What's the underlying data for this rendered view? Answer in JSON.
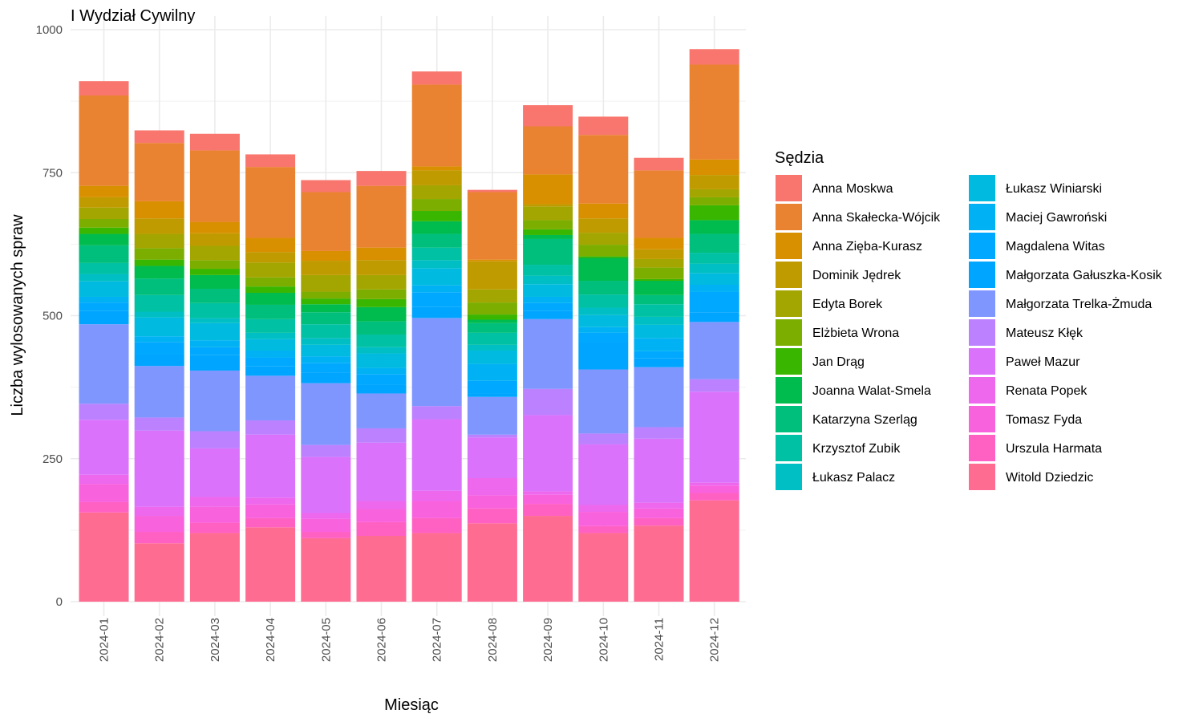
{
  "chart_data": {
    "type": "bar",
    "stacked": true,
    "title": "I Wydział Cywilny",
    "xlabel": "Miesiąc",
    "ylabel": "Liczba wylosowanych spraw",
    "ylim": [
      0,
      1000
    ],
    "yticks": [
      0,
      250,
      500,
      750,
      1000
    ],
    "grid": true,
    "legend_title": "Sędzia",
    "legend_position": "right",
    "categories": [
      "2024-01",
      "2024-02",
      "2024-03",
      "2024-04",
      "2024-05",
      "2024-06",
      "2024-07",
      "2024-08",
      "2024-09",
      "2024-10",
      "2024-11",
      "2024-12"
    ],
    "series": [
      {
        "name": "Anna Moskwa",
        "color": "#F8766D",
        "values": [
          25,
          22,
          29,
          22,
          21,
          26,
          23,
          4,
          37,
          32,
          22,
          27
        ]
      },
      {
        "name": "Anna Skałecka-Wójcik",
        "color": "#EA8331",
        "values": [
          158,
          102,
          125,
          124,
          103,
          108,
          143,
          118,
          84,
          120,
          118,
          166
        ]
      },
      {
        "name": "Anna Zięba-Kurasz",
        "color": "#D89000",
        "values": [
          20,
          30,
          20,
          25,
          17,
          22,
          7,
          3,
          52,
          26,
          20,
          27
        ]
      },
      {
        "name": "Dominik Jędrek",
        "color": "#C09B00",
        "values": [
          18,
          27,
          22,
          18,
          25,
          26,
          26,
          49,
          4,
          25,
          17,
          25
        ]
      },
      {
        "name": "Edyta Borek",
        "color": "#A3A500",
        "values": [
          20,
          25,
          25,
          26,
          29,
          25,
          24,
          23,
          24,
          21,
          15,
          14
        ]
      },
      {
        "name": "Elżbieta Wrona",
        "color": "#7CAE00",
        "values": [
          15,
          20,
          15,
          16,
          12,
          17,
          21,
          21,
          16,
          20,
          20,
          14
        ]
      },
      {
        "name": "Jan Drąg",
        "color": "#39B600",
        "values": [
          11,
          11,
          11,
          11,
          10,
          14,
          18,
          9,
          10,
          3,
          3,
          26
        ]
      },
      {
        "name": "Joanna Walat-Smela",
        "color": "#00BB4E",
        "values": [
          20,
          22,
          24,
          21,
          14,
          25,
          22,
          6,
          7,
          40,
          25,
          24
        ]
      },
      {
        "name": "Katarzyna Szerląg",
        "color": "#00BF7D",
        "values": [
          31,
          29,
          25,
          25,
          21,
          23,
          24,
          17,
          45,
          24,
          16,
          33
        ]
      },
      {
        "name": "Krzysztof Zubik",
        "color": "#00C1A3",
        "values": [
          19,
          29,
          26,
          24,
          24,
          22,
          22,
          21,
          19,
          23,
          22,
          19
        ]
      },
      {
        "name": "Łukasz Palacz",
        "color": "#00BFC4",
        "values": [
          13,
          10,
          9,
          11,
          12,
          11,
          14,
          10,
          15,
          13,
          14,
          17
        ]
      },
      {
        "name": "Łukasz Winiarski",
        "color": "#00BAE0",
        "values": [
          27,
          33,
          30,
          20,
          20,
          25,
          30,
          23,
          22,
          21,
          23,
          20
        ]
      },
      {
        "name": "Maciej Gawroński",
        "color": "#00B2F3",
        "values": [
          10,
          10,
          12,
          12,
          12,
          11,
          12,
          30,
          11,
          10,
          23,
          12
        ]
      },
      {
        "name": "Magdalena Witas",
        "color": "#00A9FF",
        "values": [
          15,
          22,
          14,
          15,
          16,
          18,
          26,
          22,
          14,
          17,
          12,
          36
        ]
      },
      {
        "name": "Małgorzata Gałuszka-Kosik",
        "color": "#00A5FF",
        "values": [
          23,
          20,
          27,
          17,
          19,
          16,
          19,
          6,
          14,
          47,
          16,
          17
        ]
      },
      {
        "name": "Małgorzata Trelka-Żmuda",
        "color": "#7F96FF",
        "values": [
          139,
          90,
          106,
          78,
          108,
          61,
          154,
          66,
          122,
          112,
          105,
          100
        ]
      },
      {
        "name": "Mateusz Kłęk",
        "color": "#BC81FF",
        "values": [
          28,
          23,
          30,
          25,
          21,
          25,
          23,
          5,
          46,
          19,
          20,
          22
        ]
      },
      {
        "name": "Paweł Mazur",
        "color": "#DB72FB",
        "values": [
          96,
          133,
          85,
          110,
          98,
          102,
          125,
          71,
          133,
          106,
          112,
          159
        ]
      },
      {
        "name": "Renata Popek",
        "color": "#ED68ED",
        "values": [
          16,
          16,
          17,
          12,
          10,
          14,
          18,
          30,
          6,
          12,
          10,
          5
        ]
      },
      {
        "name": "Tomasz Fyda",
        "color": "#F962DD",
        "values": [
          32,
          28,
          28,
          24,
          23,
          23,
          30,
          23,
          16,
          25,
          17,
          13
        ]
      },
      {
        "name": "Urszula Harmata",
        "color": "#FF61C3",
        "values": [
          18,
          20,
          18,
          16,
          11,
          24,
          26,
          26,
          21,
          12,
          13,
          13
        ]
      },
      {
        "name": "Witold Dziedzic",
        "color": "#FF6C91",
        "values": [
          156,
          102,
          120,
          130,
          111,
          115,
          120,
          137,
          150,
          120,
          133,
          177
        ]
      }
    ]
  }
}
